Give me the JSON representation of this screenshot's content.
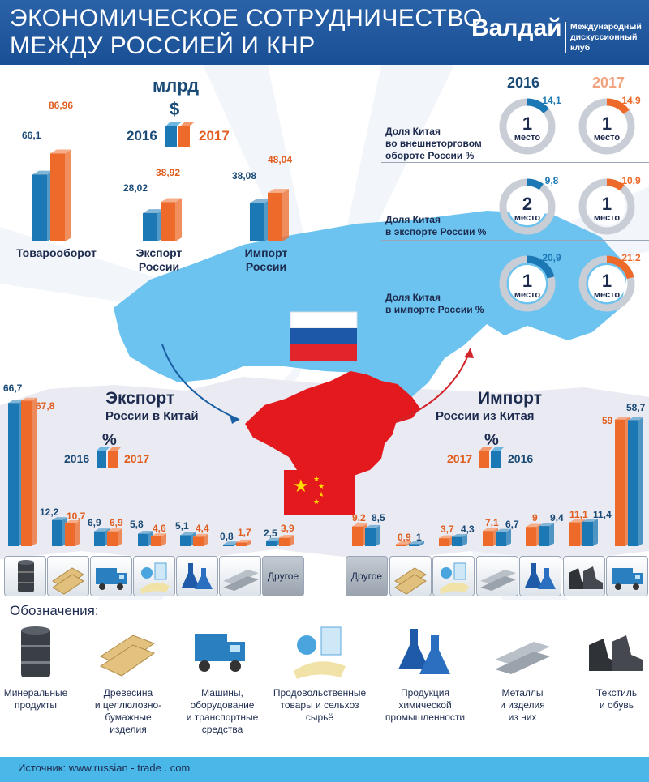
{
  "header": {
    "title_line1": "ЭКОНОМИЧЕСКОЕ СОТРУДНИЧЕСТВО",
    "title_line2": "МЕЖДУ РОССИЕЙ И КНР",
    "brand": "Валдай",
    "brand_sub1": "Международный",
    "brand_sub2": "дискуссионный клуб"
  },
  "colors": {
    "y2016": "#1b78b4",
    "y2017": "#ee6a2a",
    "map": "#6cc3ef",
    "china": "#e3191d",
    "header": "#1f5aa0"
  },
  "top_chart": {
    "unit": "млрд",
    "currency": "$",
    "legend_2016": "2016",
    "legend_2017": "2017",
    "groups": [
      {
        "label": "Товарооборот",
        "v2016": "66,1",
        "v2017": "86,96"
      },
      {
        "label1": "Экспорт",
        "label2": "России",
        "v2016": "28,02",
        "v2017": "38,92"
      },
      {
        "label1": "Импорт",
        "label2": "России",
        "v2016": "38,08",
        "v2017": "48,04"
      }
    ]
  },
  "chart_data": [
    {
      "type": "bar",
      "title": "",
      "unit": "млрд $",
      "categories": [
        "Товарооборот",
        "Экспорт России",
        "Импорт России"
      ],
      "series": [
        {
          "name": "2016",
          "values": [
            66.1,
            28.02,
            38.08
          ]
        },
        {
          "name": "2017",
          "values": [
            86.96,
            38.92,
            48.04
          ]
        }
      ]
    },
    {
      "type": "bar",
      "title": "Экспорт России в Китай",
      "unit": "%",
      "categories": [
        "Минеральные продукты",
        "Древесина и целлюлозно-бумажные изделия",
        "Машины, оборудование и транспортные средства",
        "Продовольственные товары и сельхоз сырьё",
        "Продукция химической промышленности",
        "Металлы и изделия из них",
        "Другое"
      ],
      "series": [
        {
          "name": "2016",
          "values": [
            66.7,
            12.2,
            6.9,
            5.8,
            5.1,
            0.8,
            2.5
          ]
        },
        {
          "name": "2017",
          "values": [
            67.8,
            10.7,
            6.9,
            4.6,
            4.4,
            1.7,
            3.9
          ]
        }
      ]
    },
    {
      "type": "bar",
      "title": "Импорт России из Китая",
      "unit": "%",
      "categories": [
        "Другое",
        "Древесина и целлюлозно-бумажные изделия",
        "Продовольственные товары и сельхоз сырьё",
        "Металлы и изделия из них",
        "Продукция химической промышленности",
        "Текстиль и обувь",
        "Машины, оборудование и транспортные средства"
      ],
      "series": [
        {
          "name": "2017",
          "values": [
            9.2,
            0.9,
            3.7,
            7.1,
            9,
            11.1,
            59
          ]
        },
        {
          "name": "2016",
          "values": [
            8.5,
            1,
            4.3,
            6.7,
            9.4,
            11.4,
            58.7
          ]
        }
      ]
    }
  ],
  "share": {
    "year_2016": "2016",
    "year_2017": "2017",
    "place_word": "место",
    "rows": [
      {
        "label1": "Доля Китая",
        "label2": "во внешнеторговом",
        "label3": "обороте России %",
        "p2016": "14,1",
        "r2016": "1",
        "p2017": "14,9",
        "r2017": "1"
      },
      {
        "label1": "Доля Китая",
        "label2": "в экспорте России %",
        "p2016": "9,8",
        "r2016": "2",
        "p2017": "10,9",
        "r2017": "1"
      },
      {
        "label1": "Доля Китая",
        "label2": "в импорте России %",
        "p2016": "20,9",
        "r2016": "1",
        "p2017": "21,2",
        "r2017": "1"
      }
    ]
  },
  "export": {
    "title1": "Экспорт",
    "title2": "России в Китай",
    "unit": "%",
    "legend_a": "2016",
    "legend_b": "2017"
  },
  "import": {
    "title1": "Импорт",
    "title2": "России из Китая",
    "unit": "%",
    "legend_a": "2017",
    "legend_b": "2016"
  },
  "export_values": [
    {
      "a": "66,7",
      "b": "67,8"
    },
    {
      "a": "12,2",
      "b": "10,7"
    },
    {
      "a": "6,9",
      "b": "6,9"
    },
    {
      "a": "5,8",
      "b": "4,6"
    },
    {
      "a": "5,1",
      "b": "4,4"
    },
    {
      "a": "0,8",
      "b": "1,7"
    },
    {
      "a": "2,5",
      "b": "3,9"
    }
  ],
  "import_values": [
    {
      "a": "9,2",
      "b": "8,5"
    },
    {
      "a": "0,9",
      "b": "1"
    },
    {
      "a": "3,7",
      "b": "4,3"
    },
    {
      "a": "7,1",
      "b": "6,7"
    },
    {
      "a": "9",
      "b": "9,4"
    },
    {
      "a": "11,1",
      "b": "11,4"
    },
    {
      "a": "59",
      "b": "58,7"
    }
  ],
  "other_label": "Другое",
  "legend": {
    "title": "Обозначения:",
    "items": [
      {
        "icon": "oil-barrel-icon",
        "l1": "Минеральные",
        "l2": "продукты"
      },
      {
        "icon": "lumber-icon",
        "l1": "Древесина",
        "l2": "и целлюлозно-",
        "l3": "бумажные",
        "l4": "изделия"
      },
      {
        "icon": "truck-icon",
        "l1": "Машины,",
        "l2": "оборудование",
        "l3": "и транспортные",
        "l4": "средства"
      },
      {
        "icon": "food-icon",
        "l1": "Продовольственные",
        "l2": "товары и сельхоз",
        "l3": "сырьё"
      },
      {
        "icon": "flask-icon",
        "l1": "Продукция",
        "l2": "химической",
        "l3": "промышленности"
      },
      {
        "icon": "metal-pipes-icon",
        "l1": "Металлы",
        "l2": "и изделия",
        "l3": "из них"
      },
      {
        "icon": "boots-icon",
        "l1": "Текстиль",
        "l2": "и обувь"
      }
    ]
  },
  "footer": {
    "source": "Источник: www.russian - trade . com"
  }
}
